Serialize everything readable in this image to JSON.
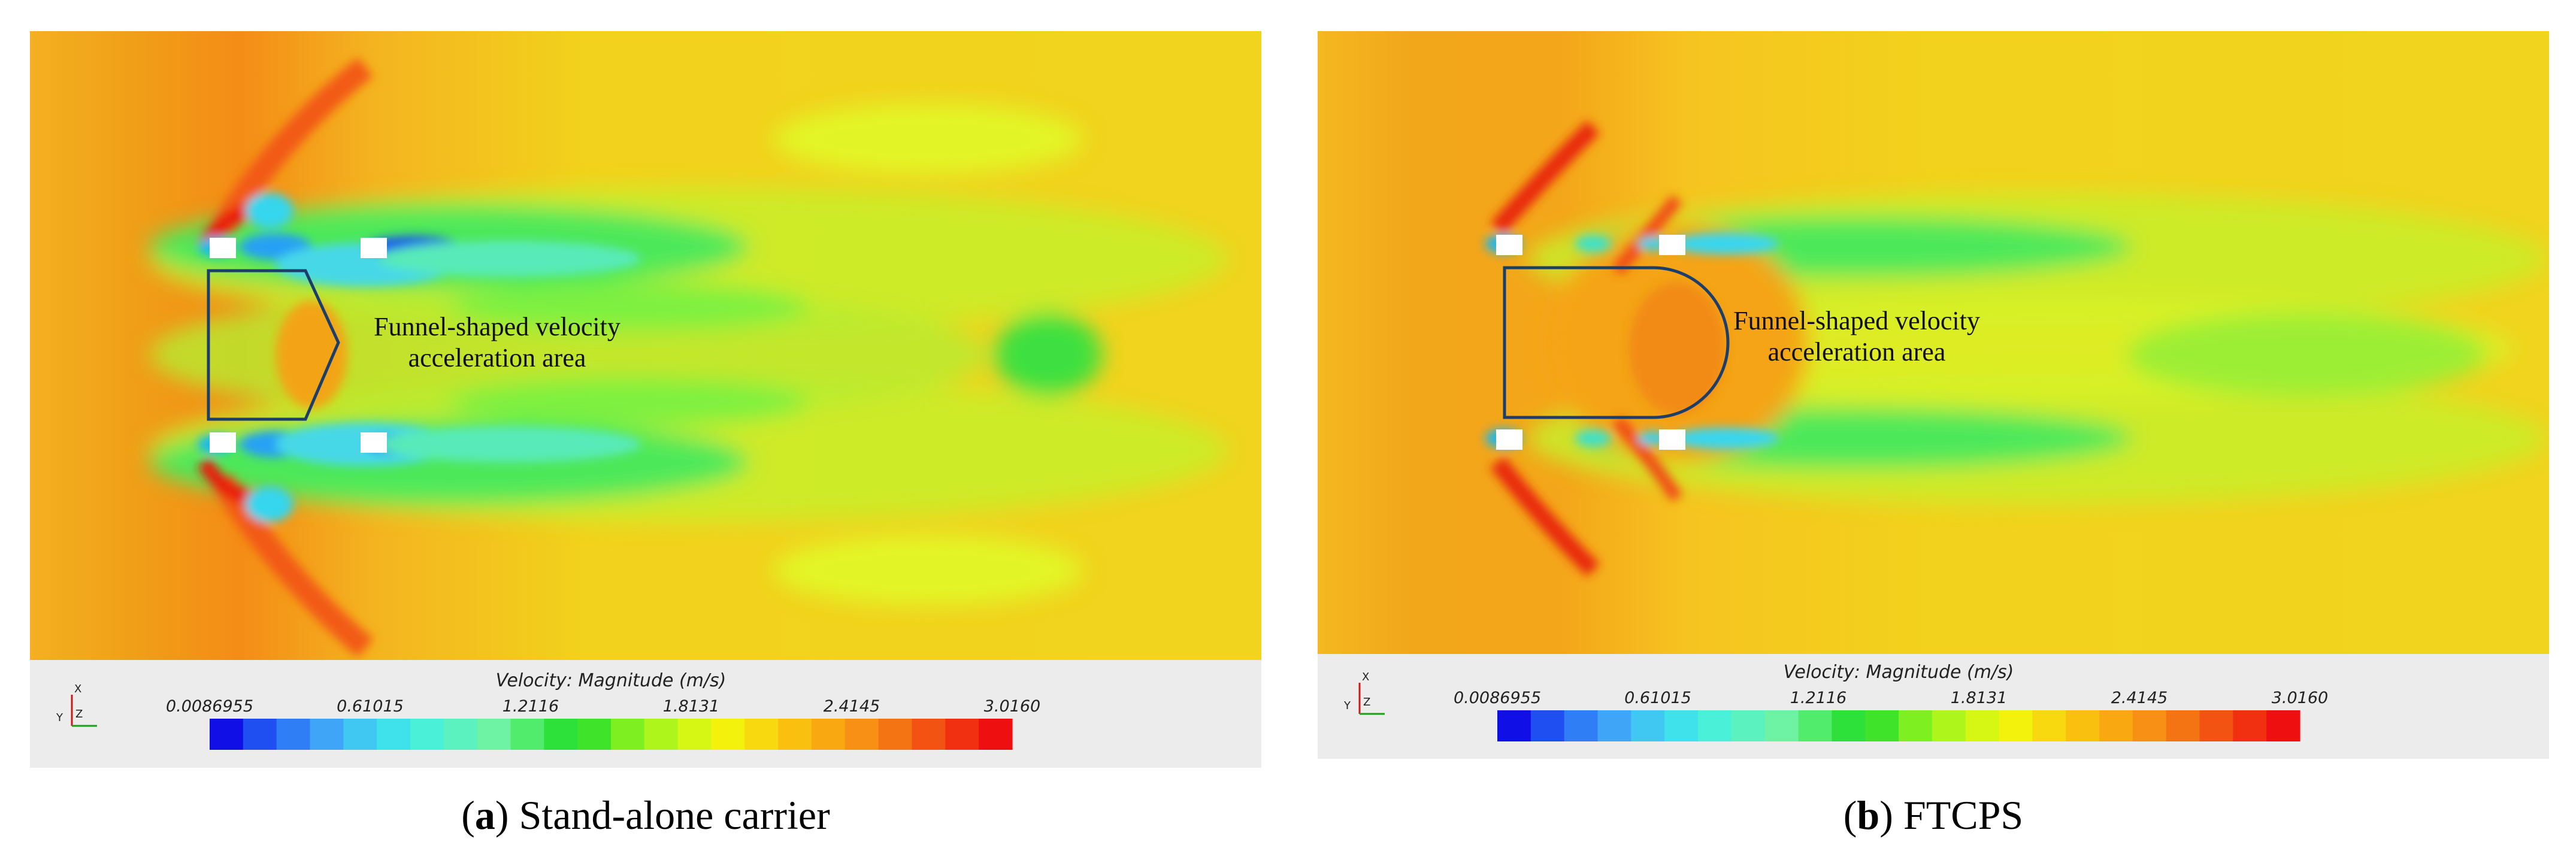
{
  "panels": [
    {
      "id": "a",
      "caption_letter": "a",
      "caption_text": "Stand-alone carrier",
      "annotation_line1": "Funnel-shaped velocity",
      "annotation_line2": "acceleration area",
      "colorbar_title": "Velocity: Magnitude (m/s)",
      "colorbar_ticks": [
        "0.0086955",
        "0.61015",
        "1.2116",
        "1.8131",
        "2.4145",
        "3.0160"
      ],
      "axis_labels": {
        "x": "X",
        "y": "Y",
        "z": "Z"
      }
    },
    {
      "id": "b",
      "caption_letter": "b",
      "caption_text": "FTCPS",
      "annotation_line1": "Funnel-shaped velocity",
      "annotation_line2": "acceleration area",
      "colorbar_title": "Velocity: Magnitude (m/s)",
      "colorbar_ticks": [
        "0.0086955",
        "0.61015",
        "1.2116",
        "1.8131",
        "2.4145",
        "3.0160"
      ],
      "axis_labels": {
        "x": "X",
        "y": "Y",
        "z": "Z"
      }
    }
  ],
  "colormap": [
    "#1010e6",
    "#1f4ff0",
    "#2f7ef5",
    "#3fa6f7",
    "#40c8f2",
    "#3fe2ea",
    "#4af0d8",
    "#5cf2c0",
    "#6ef3a4",
    "#52ec6c",
    "#2de03a",
    "#3fe32a",
    "#7ef022",
    "#aef51c",
    "#d6f714",
    "#f2f20c",
    "#f8d80e",
    "#f9c010",
    "#f9a812",
    "#f79014",
    "#f47414",
    "#f25212",
    "#f03010",
    "#ee1010"
  ],
  "colors": {
    "background_flow": "#f6cf22",
    "outline": "#1c3e6a",
    "legend_bg": "#ececec"
  }
}
